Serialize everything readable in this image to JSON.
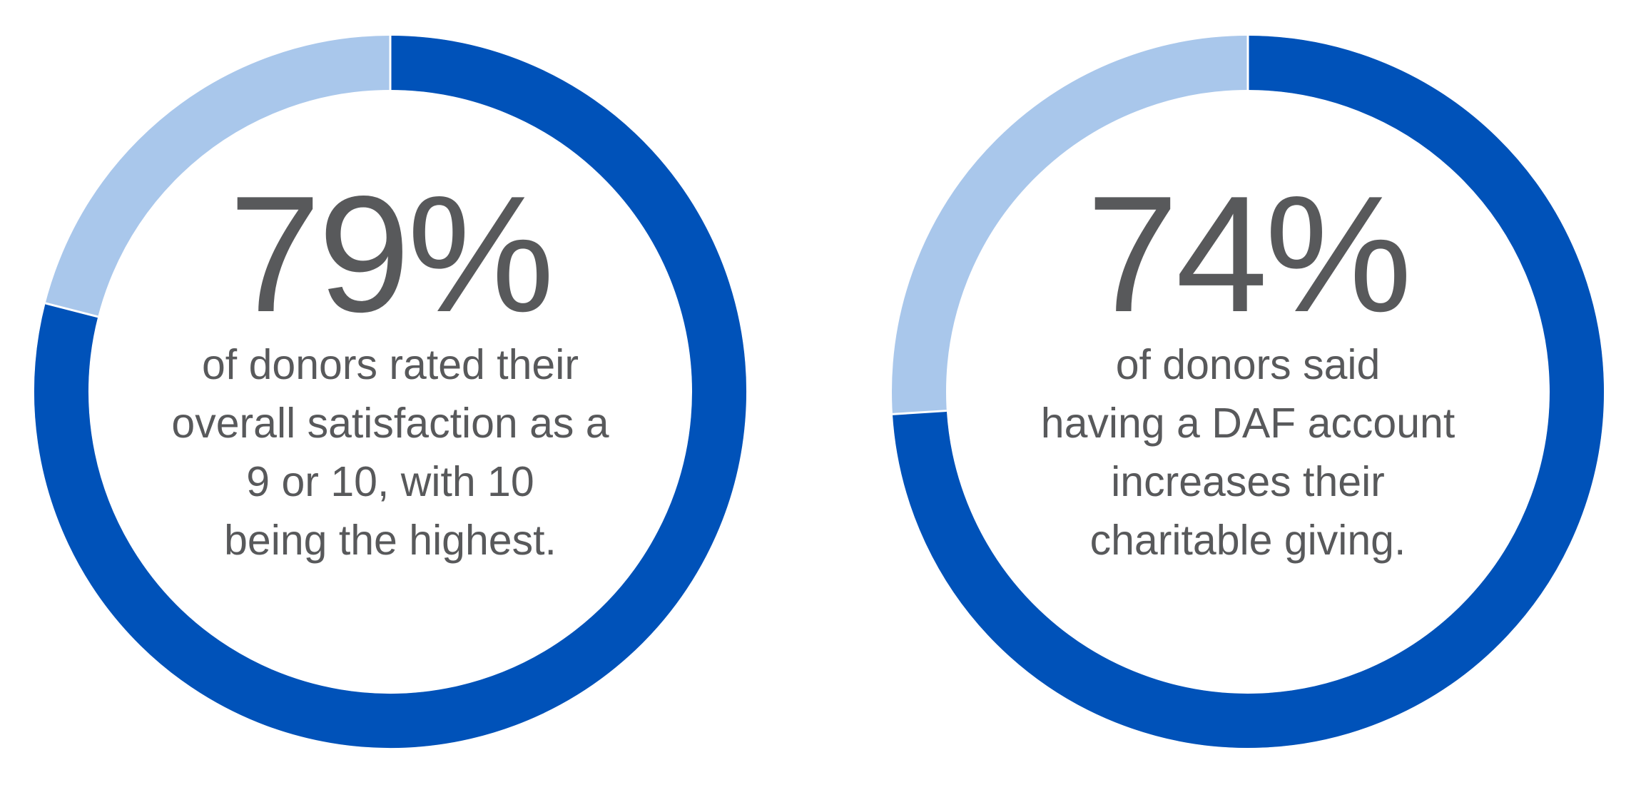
{
  "chart_data": [
    {
      "type": "donut",
      "values": [
        79
      ],
      "value_labels": [
        "79%"
      ],
      "ylim": [
        0,
        100
      ],
      "color": "#0052b9",
      "track_color": "#a9c7eb",
      "caption": [
        "of donors rated their",
        "overall satisfaction as a",
        "9 or 10, with 10",
        "being the highest."
      ]
    },
    {
      "type": "donut",
      "values": [
        74
      ],
      "value_labels": [
        "74%"
      ],
      "ylim": [
        0,
        100
      ],
      "color": "#0052b9",
      "track_color": "#a9c7eb",
      "caption": [
        "of donors said",
        "having a DAF account",
        "increases their",
        "charitable giving."
      ]
    }
  ]
}
